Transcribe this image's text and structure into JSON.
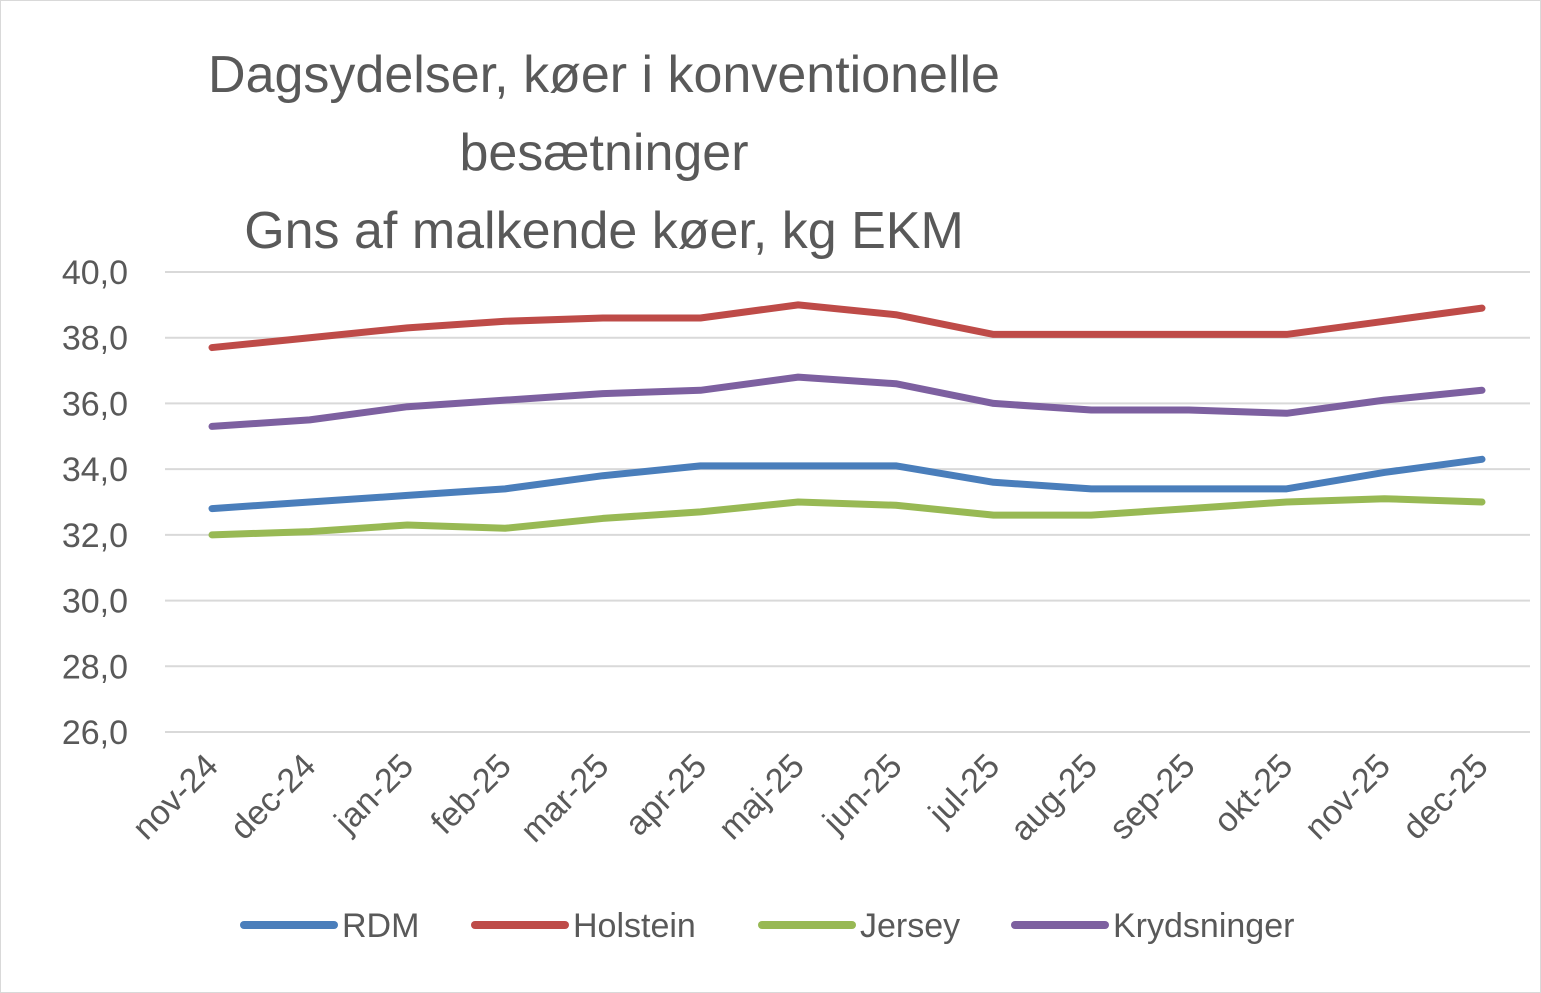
{
  "chart_data": {
    "type": "line",
    "title": [
      "Dagsydelser, køer i konventionelle",
      "besætninger",
      "Gns af malkende køer, kg EKM"
    ],
    "xlabel": "",
    "ylabel": "",
    "ylim": [
      26,
      40
    ],
    "yticks": [
      "26,0",
      "28,0",
      "30,0",
      "32,0",
      "34,0",
      "36,0",
      "38,0",
      "40,0"
    ],
    "ytick_values": [
      26,
      28,
      30,
      32,
      34,
      36,
      38,
      40
    ],
    "grid": true,
    "legend_position": "bottom",
    "categories": [
      "nov-24",
      "dec-24",
      "jan-25",
      "feb-25",
      "mar-25",
      "apr-25",
      "maj-25",
      "jun-25",
      "jul-25",
      "aug-25",
      "sep-25",
      "okt-25",
      "nov-25",
      "dec-25"
    ],
    "series": [
      {
        "name": "RDM",
        "color": "#4a7ebb",
        "values": [
          32.8,
          33.0,
          33.2,
          33.4,
          33.8,
          34.1,
          34.1,
          34.1,
          33.6,
          33.4,
          33.4,
          33.4,
          33.9,
          34.3
        ]
      },
      {
        "name": "Holstein",
        "color": "#be4b48",
        "values": [
          37.7,
          38.0,
          38.3,
          38.5,
          38.6,
          38.6,
          39.0,
          38.7,
          38.1,
          38.1,
          38.1,
          38.1,
          38.5,
          38.9
        ]
      },
      {
        "name": "Jersey",
        "color": "#98b954",
        "values": [
          32.0,
          32.1,
          32.3,
          32.2,
          32.5,
          32.7,
          33.0,
          32.9,
          32.6,
          32.6,
          32.8,
          33.0,
          33.1,
          33.0
        ]
      },
      {
        "name": "Krydsninger",
        "color": "#7d60a0",
        "values": [
          35.3,
          35.5,
          35.9,
          36.1,
          36.3,
          36.4,
          36.8,
          36.6,
          36.0,
          35.8,
          35.8,
          35.7,
          36.1,
          36.4
        ]
      }
    ]
  }
}
